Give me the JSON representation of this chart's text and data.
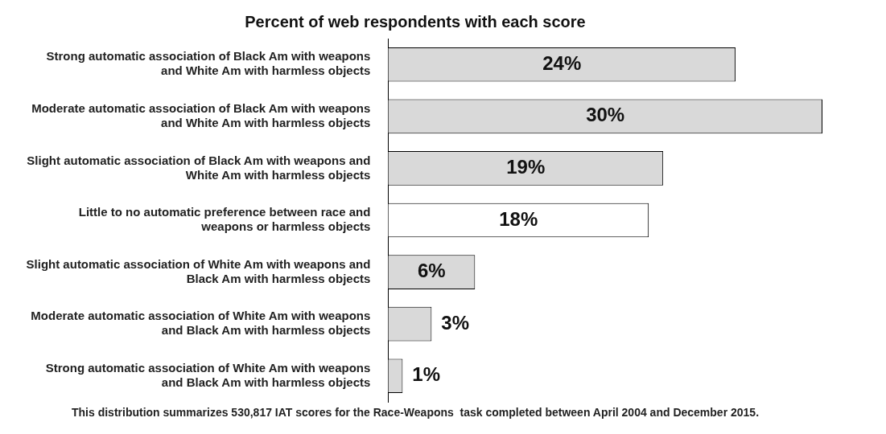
{
  "chart_data": {
    "type": "bar",
    "orientation": "horizontal",
    "title": "Percent of web respondents with each score",
    "categories": [
      "Strong automatic association of Black Am with weapons and White Am with harmless objects",
      "Moderate automatic association of Black Am with weapons and White Am with harmless objects",
      "Slight automatic association of Black Am with weapons and White Am with harmless objects",
      "Little to no automatic preference between race and weapons or harmless objects",
      "Slight automatic association of White Am with weapons and Black Am with harmless objects",
      "Moderate automatic association of White Am with weapons and Black Am with harmless objects",
      "Strong automatic association of White Am with weapons and Black Am with harmless objects"
    ],
    "values": [
      24,
      30,
      19,
      18,
      6,
      3,
      1
    ],
    "value_labels": [
      "24%",
      "30%",
      "19%",
      "18%",
      "6%",
      "3%",
      "1%"
    ],
    "colors": [
      "#d9d9d9",
      "#d9d9d9",
      "#d9d9d9",
      "#ffffff",
      "#d9d9d9",
      "#d9d9d9",
      "#d9d9d9"
    ],
    "grid": false,
    "legend": false,
    "tick_labels": "y",
    "annotations": [
      "This distribution summarizes 530,817 IAT scores for the Race-Weapons  task completed between April 2004 and December 2015."
    ]
  }
}
